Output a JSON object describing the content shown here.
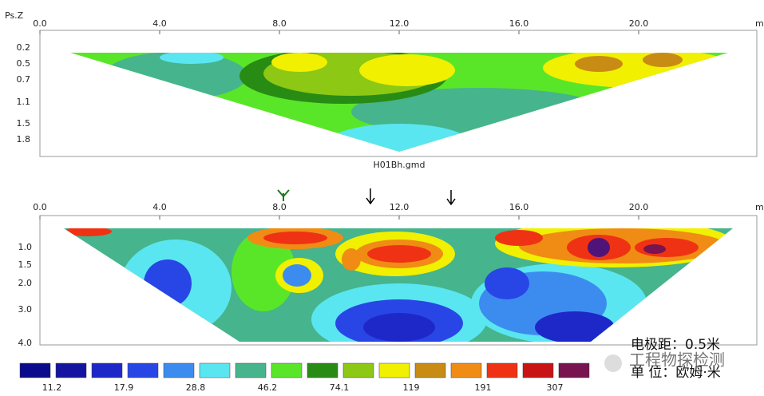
{
  "top_panel": {
    "axis_label": "Ps.Z",
    "x_ticks": [
      "0.0",
      "4.0",
      "8.0",
      "12.0",
      "16.0",
      "20.0"
    ],
    "x_unit": "m.",
    "depth_ticks": [
      "0.2",
      "0.5",
      "0.7",
      "1.1",
      "1.5",
      "1.8"
    ],
    "file_name": "H01Bh.gmd"
  },
  "bottom_panel": {
    "x_ticks": [
      "0.0",
      "4.0",
      "8.0",
      "12.0",
      "16.0",
      "20.0"
    ],
    "x_unit": "m.",
    "depth_ticks": [
      "1.0",
      "1.5",
      "2.0",
      "3.0",
      "4.0"
    ]
  },
  "legend": {
    "labels": [
      "11.2",
      "17.9",
      "28.8",
      "46.2",
      "74.1",
      "119",
      "191",
      "307"
    ]
  },
  "notes": {
    "spacing": "电极距：0.5米",
    "unit": "单 位：欧姆·米"
  },
  "watermark": "工程物探检测"
}
